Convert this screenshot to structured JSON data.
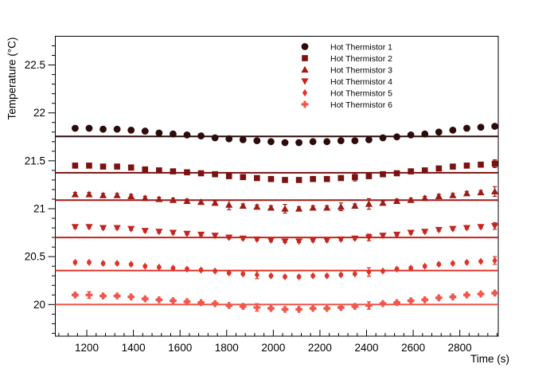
{
  "chart_data": {
    "type": "scatter",
    "title": "",
    "xlabel": "Time (s)",
    "ylabel": "Temperature (°C)",
    "xlim": [
      1065,
      2965
    ],
    "ylim": [
      19.67,
      22.8
    ],
    "x_major_ticks": [
      1200,
      1400,
      1600,
      1800,
      2000,
      2200,
      2400,
      2600,
      2800
    ],
    "x_minor_step": 40,
    "y_major_ticks": [
      20,
      20.5,
      21,
      21.5,
      22,
      22.5
    ],
    "y_minor_step": 0.1,
    "grid": false,
    "background": "#ffffff",
    "axis_color": "#000000",
    "legend_position": "top-center-inside",
    "x": [
      1150,
      1210,
      1270,
      1330,
      1390,
      1450,
      1510,
      1570,
      1630,
      1690,
      1750,
      1810,
      1870,
      1930,
      1990,
      2050,
      2110,
      2170,
      2230,
      2290,
      2350,
      2410,
      2470,
      2530,
      2590,
      2650,
      2710,
      2770,
      2830,
      2890,
      2950
    ],
    "series": [
      {
        "name": "Hot Thermistor 1",
        "marker": "circle",
        "color": "#2e0b0b",
        "fit": 21.755,
        "err_default": 0.012,
        "err_spikes": {},
        "values": [
          21.84,
          21.84,
          21.83,
          21.83,
          21.82,
          21.81,
          21.79,
          21.78,
          21.77,
          21.76,
          21.74,
          21.73,
          21.72,
          21.71,
          21.7,
          21.69,
          21.69,
          21.7,
          21.7,
          21.71,
          21.71,
          21.72,
          21.74,
          21.75,
          21.77,
          21.78,
          21.8,
          21.82,
          21.84,
          21.85,
          21.86
        ]
      },
      {
        "name": "Hot Thermistor 2",
        "marker": "square",
        "color": "#7a1210",
        "fit": 21.375,
        "err_default": 0.013,
        "err_spikes": {
          "20": 0.04,
          "30": 0.04
        },
        "values": [
          21.45,
          21.45,
          21.44,
          21.44,
          21.43,
          21.41,
          21.4,
          21.39,
          21.38,
          21.37,
          21.36,
          21.34,
          21.33,
          21.32,
          21.31,
          21.3,
          21.3,
          21.31,
          21.31,
          21.32,
          21.33,
          21.34,
          21.36,
          21.37,
          21.39,
          21.4,
          21.42,
          21.44,
          21.45,
          21.46,
          21.47
        ]
      },
      {
        "name": "Hot Thermistor 3",
        "marker": "triangle-up",
        "color": "#9e1b16",
        "fit": 21.09,
        "err_default": 0.02,
        "err_spikes": {
          "11": 0.05,
          "15": 0.045,
          "19": 0.04,
          "21": 0.055,
          "30": 0.05
        },
        "values": [
          21.15,
          21.15,
          21.14,
          21.14,
          21.13,
          21.11,
          21.1,
          21.09,
          21.08,
          21.07,
          21.06,
          21.04,
          21.03,
          21.02,
          21.01,
          21.0,
          21.0,
          21.01,
          21.01,
          21.02,
          21.03,
          21.05,
          21.06,
          21.08,
          21.09,
          21.11,
          21.13,
          21.14,
          21.16,
          21.17,
          21.18
        ]
      },
      {
        "name": "Hot Thermistor 4",
        "marker": "triangle-down",
        "color": "#c4241e",
        "fit": 20.7,
        "err_default": 0.013,
        "err_spikes": {
          "21": 0.035,
          "30": 0.035
        },
        "values": [
          20.81,
          20.81,
          20.8,
          20.8,
          20.79,
          20.77,
          20.76,
          20.75,
          20.74,
          20.73,
          20.72,
          20.7,
          20.69,
          20.68,
          20.67,
          20.66,
          20.66,
          20.67,
          20.67,
          20.68,
          20.69,
          20.7,
          20.72,
          20.73,
          20.75,
          20.76,
          20.78,
          20.79,
          20.8,
          20.81,
          20.82
        ]
      },
      {
        "name": "Hot Thermistor 5",
        "marker": "diamond",
        "color": "#e03228",
        "fit": 20.355,
        "err_default": 0.013,
        "err_spikes": {
          "13": 0.04,
          "21": 0.045,
          "30": 0.04
        },
        "values": [
          20.44,
          20.44,
          20.43,
          20.43,
          20.42,
          20.4,
          20.39,
          20.38,
          20.37,
          20.36,
          20.35,
          20.33,
          20.32,
          20.31,
          20.3,
          20.29,
          20.29,
          20.3,
          20.3,
          20.31,
          20.32,
          20.34,
          20.35,
          20.37,
          20.38,
          20.4,
          20.42,
          20.43,
          20.44,
          20.45,
          20.46
        ]
      },
      {
        "name": "Hot Thermistor 6",
        "marker": "plus",
        "color": "#f2564c",
        "fit": 20.0,
        "err_default": 0.015,
        "err_spikes": {
          "1": 0.035,
          "13": 0.04,
          "21": 0.04
        },
        "values": [
          20.1,
          20.1,
          20.09,
          20.09,
          20.08,
          20.06,
          20.05,
          20.04,
          20.03,
          20.02,
          20.01,
          19.99,
          19.98,
          19.97,
          19.96,
          19.95,
          19.95,
          19.96,
          19.96,
          19.97,
          19.98,
          19.99,
          20.01,
          20.02,
          20.04,
          20.05,
          20.07,
          20.08,
          20.1,
          20.11,
          20.12
        ]
      }
    ]
  }
}
